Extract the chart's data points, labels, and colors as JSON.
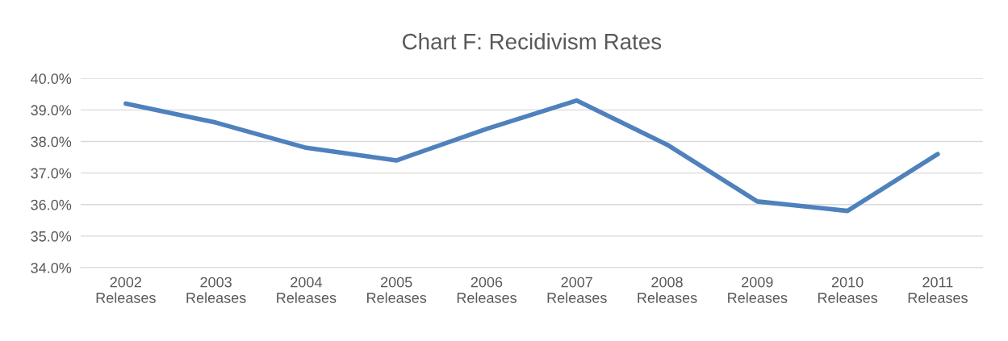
{
  "chart_data": {
    "type": "line",
    "title": "Chart F: Recidivism Rates",
    "categories": [
      "2002\nReleases",
      "2003\nReleases",
      "2004\nReleases",
      "2005\nReleases",
      "2006\nReleases",
      "2007\nReleases",
      "2008\nReleases",
      "2009\nReleases",
      "2010\nReleases",
      "2011\nReleases"
    ],
    "series": [
      {
        "color": "#4f81bd",
        "values": [
          39.2,
          38.6,
          37.8,
          37.4,
          38.4,
          39.3,
          37.9,
          36.1,
          35.8,
          37.6
        ]
      }
    ],
    "ylim": [
      34,
      40
    ],
    "yticks": [
      {
        "value": 34,
        "label": "34.0%"
      },
      {
        "value": 35,
        "label": "35.0%"
      },
      {
        "value": 36,
        "label": "36.0%"
      },
      {
        "value": 37,
        "label": "37.0%"
      },
      {
        "value": 38,
        "label": "38.0%"
      },
      {
        "value": 39,
        "label": "39.0%"
      },
      {
        "value": 40,
        "label": "40.0%"
      }
    ],
    "grid": "y",
    "marker": "none",
    "line_style": "solid"
  }
}
